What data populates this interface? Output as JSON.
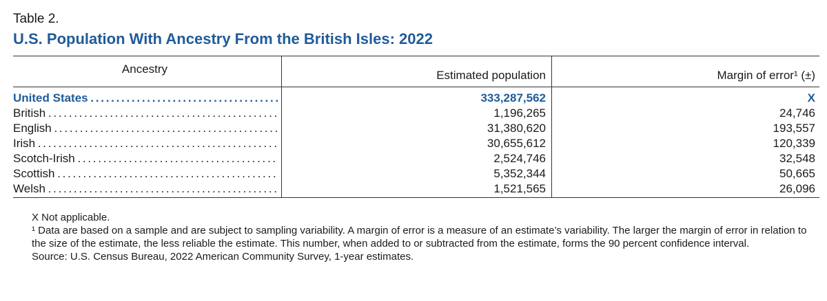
{
  "table_label": "Table 2.",
  "title": "U.S. Population With Ancestry From the British Isles: 2022",
  "headers": {
    "ancestry": "Ancestry",
    "population": "Estimated population",
    "moe": "Margin of error¹ (±)"
  },
  "rows": [
    {
      "name": "United States",
      "population": "333,287,562",
      "moe": "X"
    },
    {
      "name": "British",
      "population": "1,196,265",
      "moe": "24,746"
    },
    {
      "name": "English",
      "population": "31,380,620",
      "moe": "193,557"
    },
    {
      "name": "Irish",
      "population": "30,655,612",
      "moe": "120,339"
    },
    {
      "name": "Scotch-Irish",
      "population": "2,524,746",
      "moe": "32,548"
    },
    {
      "name": "Scottish",
      "population": "5,352,344",
      "moe": "50,665"
    },
    {
      "name": "Welsh",
      "population": "1,521,565",
      "moe": "26,096"
    }
  ],
  "notes": {
    "not_applicable": "X Not applicable.",
    "footnote": "¹ Data are based on a sample and are subject to sampling variability. A margin of error is a measure of an estimate’s variability. The larger the margin of error in relation to the size of the estimate, the less reliable the estimate. This number, when added to or subtracted from the estimate, forms the 90 percent confidence interval.",
    "source": "Source: U.S. Census Bureau, 2022 American Community Survey, 1-year estimates."
  }
}
